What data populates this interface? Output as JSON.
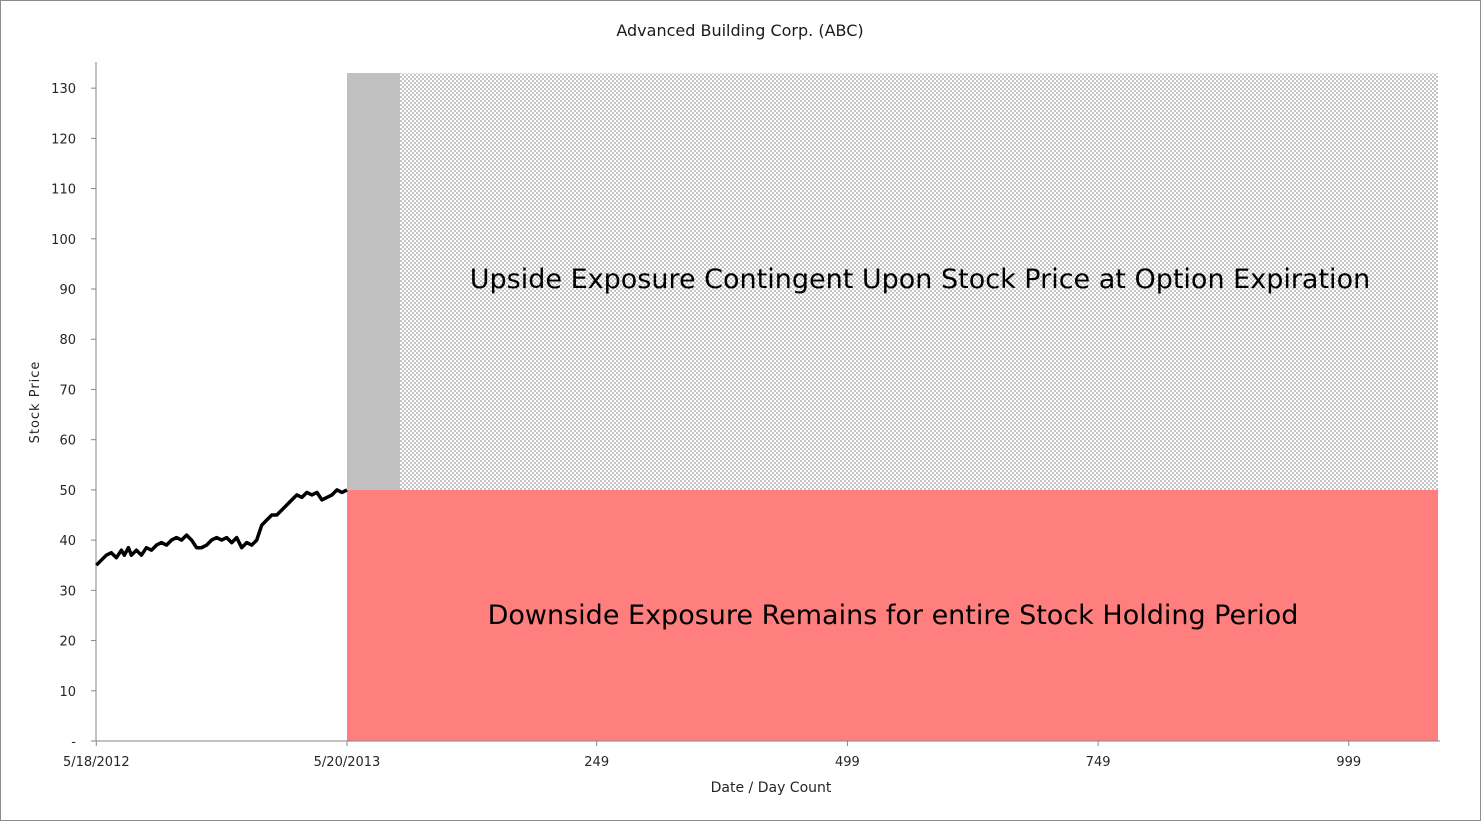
{
  "chart_data": {
    "type": "line",
    "title": "Advanced Building Corp. (ABC)",
    "xlabel": "Date / Day Count",
    "ylabel": "Stock Price",
    "ylim": [
      0,
      133
    ],
    "y_ticks": [
      {
        "value": 0,
        "label": "-"
      },
      {
        "value": 10,
        "label": "10"
      },
      {
        "value": 20,
        "label": "20"
      },
      {
        "value": 30,
        "label": "30"
      },
      {
        "value": 40,
        "label": "40"
      },
      {
        "value": 50,
        "label": "50"
      },
      {
        "value": 60,
        "label": "60"
      },
      {
        "value": 70,
        "label": "70"
      },
      {
        "value": 80,
        "label": "80"
      },
      {
        "value": 90,
        "label": "90"
      },
      {
        "value": 100,
        "label": "100"
      },
      {
        "value": 110,
        "label": "110"
      },
      {
        "value": 120,
        "label": "120"
      },
      {
        "value": 130,
        "label": "130"
      }
    ],
    "x_ticks": [
      {
        "value": -250,
        "label": "5/18/2012"
      },
      {
        "value": 0,
        "label": "5/20/2013"
      },
      {
        "value": 249,
        "label": "249"
      },
      {
        "value": 499,
        "label": "499"
      },
      {
        "value": 749,
        "label": "749"
      },
      {
        "value": 999,
        "label": "999"
      }
    ],
    "xlim": [
      -250,
      1090
    ],
    "grid": false,
    "series": [
      {
        "type": "line",
        "color": "#000000",
        "x": [
          -250,
          -245,
          -240,
          -235,
          -230,
          -225,
          -222,
          -218,
          -215,
          -210,
          -205,
          -200,
          -195,
          -190,
          -185,
          -180,
          -175,
          -170,
          -165,
          -160,
          -155,
          -150,
          -145,
          -140,
          -135,
          -130,
          -125,
          -120,
          -115,
          -110,
          -105,
          -100,
          -95,
          -90,
          -85,
          -80,
          -75,
          -70,
          -65,
          -60,
          -55,
          -50,
          -45,
          -40,
          -35,
          -30,
          -25,
          -20,
          -15,
          -10,
          -5,
          0
        ],
        "values": [
          35,
          36,
          37,
          37.5,
          36.5,
          38,
          37,
          38.5,
          37,
          38,
          37,
          38.5,
          38,
          39,
          39.5,
          39,
          40,
          40.5,
          40,
          41,
          40,
          38.5,
          38.5,
          39,
          40,
          40.5,
          40,
          40.5,
          39.5,
          40.5,
          38.5,
          39.5,
          39,
          40,
          43,
          44,
          45,
          45,
          46,
          47,
          48,
          49,
          48.5,
          49.5,
          49,
          49.5,
          48,
          48.5,
          49,
          50,
          49.5,
          50
        ]
      }
    ],
    "regions": [
      {
        "name": "gap",
        "x": [
          0,
          53
        ],
        "y": [
          50,
          133
        ],
        "color": "#c0c0c0"
      },
      {
        "name": "upside",
        "x": [
          53,
          1088
        ],
        "y": [
          50,
          133
        ],
        "pattern": "dots"
      },
      {
        "name": "downside",
        "x": [
          0,
          1088
        ],
        "y": [
          0,
          50
        ],
        "color": "#ff7f7f"
      }
    ],
    "annotations": {
      "upside": "Upside Exposure Contingent Upon Stock Price at Option Expiration",
      "downside": "Downside Exposure Remains for entire Stock Holding Period"
    }
  }
}
